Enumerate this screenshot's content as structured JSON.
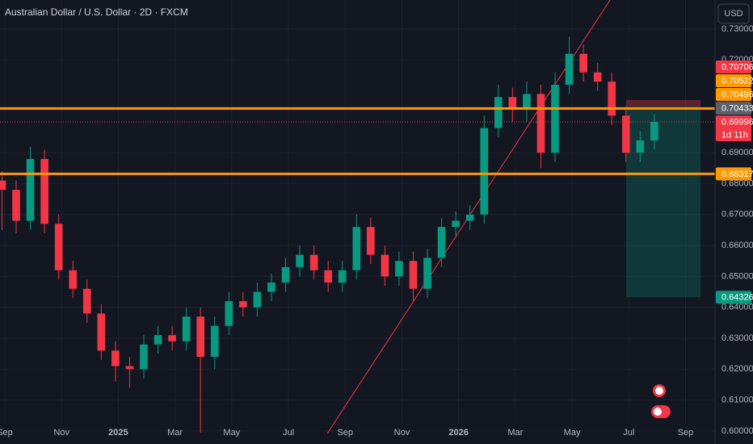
{
  "chart_data": {
    "type": "candlestick",
    "title": "Australian Dollar / U.S. Dollar · 2D · FXCM",
    "currency": "USD",
    "up_color": "#089981",
    "down_color": "#f23645",
    "grid": true,
    "xlim": [
      -0.17,
      25.04
    ],
    "ylim": [
      0.5958,
      0.7394
    ],
    "xticks": [
      {
        "value": 0,
        "label": "Sep"
      },
      {
        "value": 2,
        "label": "Nov"
      },
      {
        "value": 4,
        "label": "2025"
      },
      {
        "value": 6,
        "label": "Mar"
      },
      {
        "value": 8,
        "label": "May"
      },
      {
        "value": 10,
        "label": "Jul"
      },
      {
        "value": 12,
        "label": "Sep"
      },
      {
        "value": 14,
        "label": "Nov"
      },
      {
        "value": 16,
        "label": "2026"
      },
      {
        "value": 18,
        "label": "Mar"
      },
      {
        "value": 20,
        "label": "May"
      },
      {
        "value": 22,
        "label": "Jul"
      },
      {
        "value": 24,
        "label": "Sep"
      }
    ],
    "yticks": [
      {
        "value": 0.73,
        "label": "0.73000"
      },
      {
        "value": 0.72,
        "label": "0.72000"
      },
      {
        "value": 0.69,
        "label": "0.69000"
      },
      {
        "value": 0.68,
        "label": "0.68000"
      },
      {
        "value": 0.67,
        "label": "0.67000"
      },
      {
        "value": 0.66,
        "label": "0.66000"
      },
      {
        "value": 0.65,
        "label": "0.65000"
      },
      {
        "value": 0.64,
        "label": "0.64000"
      },
      {
        "value": 0.63,
        "label": "0.63000"
      },
      {
        "value": 0.62,
        "label": "0.62000"
      },
      {
        "value": 0.61,
        "label": "0.61000"
      },
      {
        "value": 0.6,
        "label": "0.60000"
      }
    ],
    "x": [
      -0.1,
      0.4,
      0.9,
      1.4,
      1.9,
      2.4,
      2.9,
      3.4,
      3.9,
      4.4,
      4.9,
      5.4,
      5.9,
      6.4,
      6.9,
      7.4,
      7.9,
      8.4,
      8.9,
      9.4,
      9.9,
      10.4,
      10.9,
      11.4,
      11.9,
      12.4,
      12.9,
      13.4,
      13.9,
      14.4,
      14.9,
      15.4,
      15.9,
      16.4,
      16.9,
      17.4,
      17.9,
      18.4,
      18.9,
      19.4,
      19.9,
      20.4,
      20.9,
      21.4,
      21.9,
      22.4,
      22.9
    ],
    "open": [
      0.681,
      0.678,
      0.668,
      0.688,
      0.667,
      0.652,
      0.646,
      0.638,
      0.626,
      0.621,
      0.62,
      0.628,
      0.631,
      0.629,
      0.637,
      0.624,
      0.634,
      0.642,
      0.64,
      0.645,
      0.648,
      0.653,
      0.657,
      0.652,
      0.648,
      0.652,
      0.666,
      0.657,
      0.65,
      0.655,
      0.646,
      0.656,
      0.666,
      0.668,
      0.67,
      0.698,
      0.708,
      0.704,
      0.709,
      0.69,
      0.712,
      0.722,
      0.716,
      0.713,
      0.702,
      0.69,
      0.694
    ],
    "high": [
      0.684,
      0.681,
      0.692,
      0.691,
      0.67,
      0.655,
      0.649,
      0.641,
      0.629,
      0.624,
      0.631,
      0.634,
      0.634,
      0.64,
      0.64,
      0.637,
      0.645,
      0.645,
      0.648,
      0.651,
      0.656,
      0.66,
      0.66,
      0.655,
      0.655,
      0.67,
      0.669,
      0.66,
      0.658,
      0.658,
      0.659,
      0.669,
      0.671,
      0.673,
      0.702,
      0.712,
      0.711,
      0.713,
      0.712,
      0.716,
      0.7275,
      0.725,
      0.719,
      0.716,
      0.705,
      0.697,
      0.7025
    ],
    "low": [
      0.665,
      0.664,
      0.665,
      0.664,
      0.649,
      0.643,
      0.635,
      0.623,
      0.616,
      0.614,
      0.617,
      0.625,
      0.626,
      0.626,
      0.5995,
      0.62,
      0.631,
      0.637,
      0.637,
      0.642,
      0.645,
      0.65,
      0.649,
      0.645,
      0.645,
      0.649,
      0.654,
      0.647,
      0.647,
      0.642,
      0.643,
      0.653,
      0.663,
      0.665,
      0.667,
      0.695,
      0.7,
      0.7,
      0.685,
      0.687,
      0.709,
      0.713,
      0.71,
      0.699,
      0.687,
      0.687,
      0.691
    ],
    "close": [
      0.678,
      0.668,
      0.688,
      0.667,
      0.652,
      0.646,
      0.638,
      0.626,
      0.621,
      0.62,
      0.628,
      0.631,
      0.629,
      0.637,
      0.624,
      0.634,
      0.642,
      0.64,
      0.645,
      0.648,
      0.653,
      0.657,
      0.652,
      0.648,
      0.652,
      0.666,
      0.657,
      0.65,
      0.655,
      0.646,
      0.656,
      0.666,
      0.668,
      0.67,
      0.698,
      0.708,
      0.704,
      0.709,
      0.69,
      0.712,
      0.722,
      0.716,
      0.713,
      0.702,
      0.69,
      0.694,
      0.69996
    ],
    "horizontal_lines": [
      {
        "value": 0.70433,
        "color": "#ff9800"
      },
      {
        "value": 0.68317,
        "color": "#ff9800"
      }
    ],
    "trendline": {
      "x": [
        11.37,
        21.34
      ],
      "y": [
        0.5992,
        0.7394
      ],
      "color": "#f23645"
    },
    "position": {
      "stop": 0.70706,
      "entry": 0.70496,
      "target": 0.64326
    },
    "price_tags": [
      {
        "value": 0.70706,
        "label": "0.70706",
        "color": "#f23645"
      },
      {
        "value": 0.70522,
        "label": "0.70522",
        "color": "#ff9800"
      },
      {
        "value": 0.70496,
        "label": "0.70496",
        "color": "#ff9800"
      },
      {
        "value": 0.70433,
        "label": "0.70433",
        "color": "#5d606b"
      },
      {
        "value": 0.69996,
        "label": "0.69996",
        "color": "#f23645",
        "countdown": "1d 11h"
      },
      {
        "value": 0.68317,
        "label": "0.68317",
        "color": "#ff9800"
      },
      {
        "value": 0.64326,
        "label": "0.64326",
        "color": "#089981"
      }
    ]
  }
}
